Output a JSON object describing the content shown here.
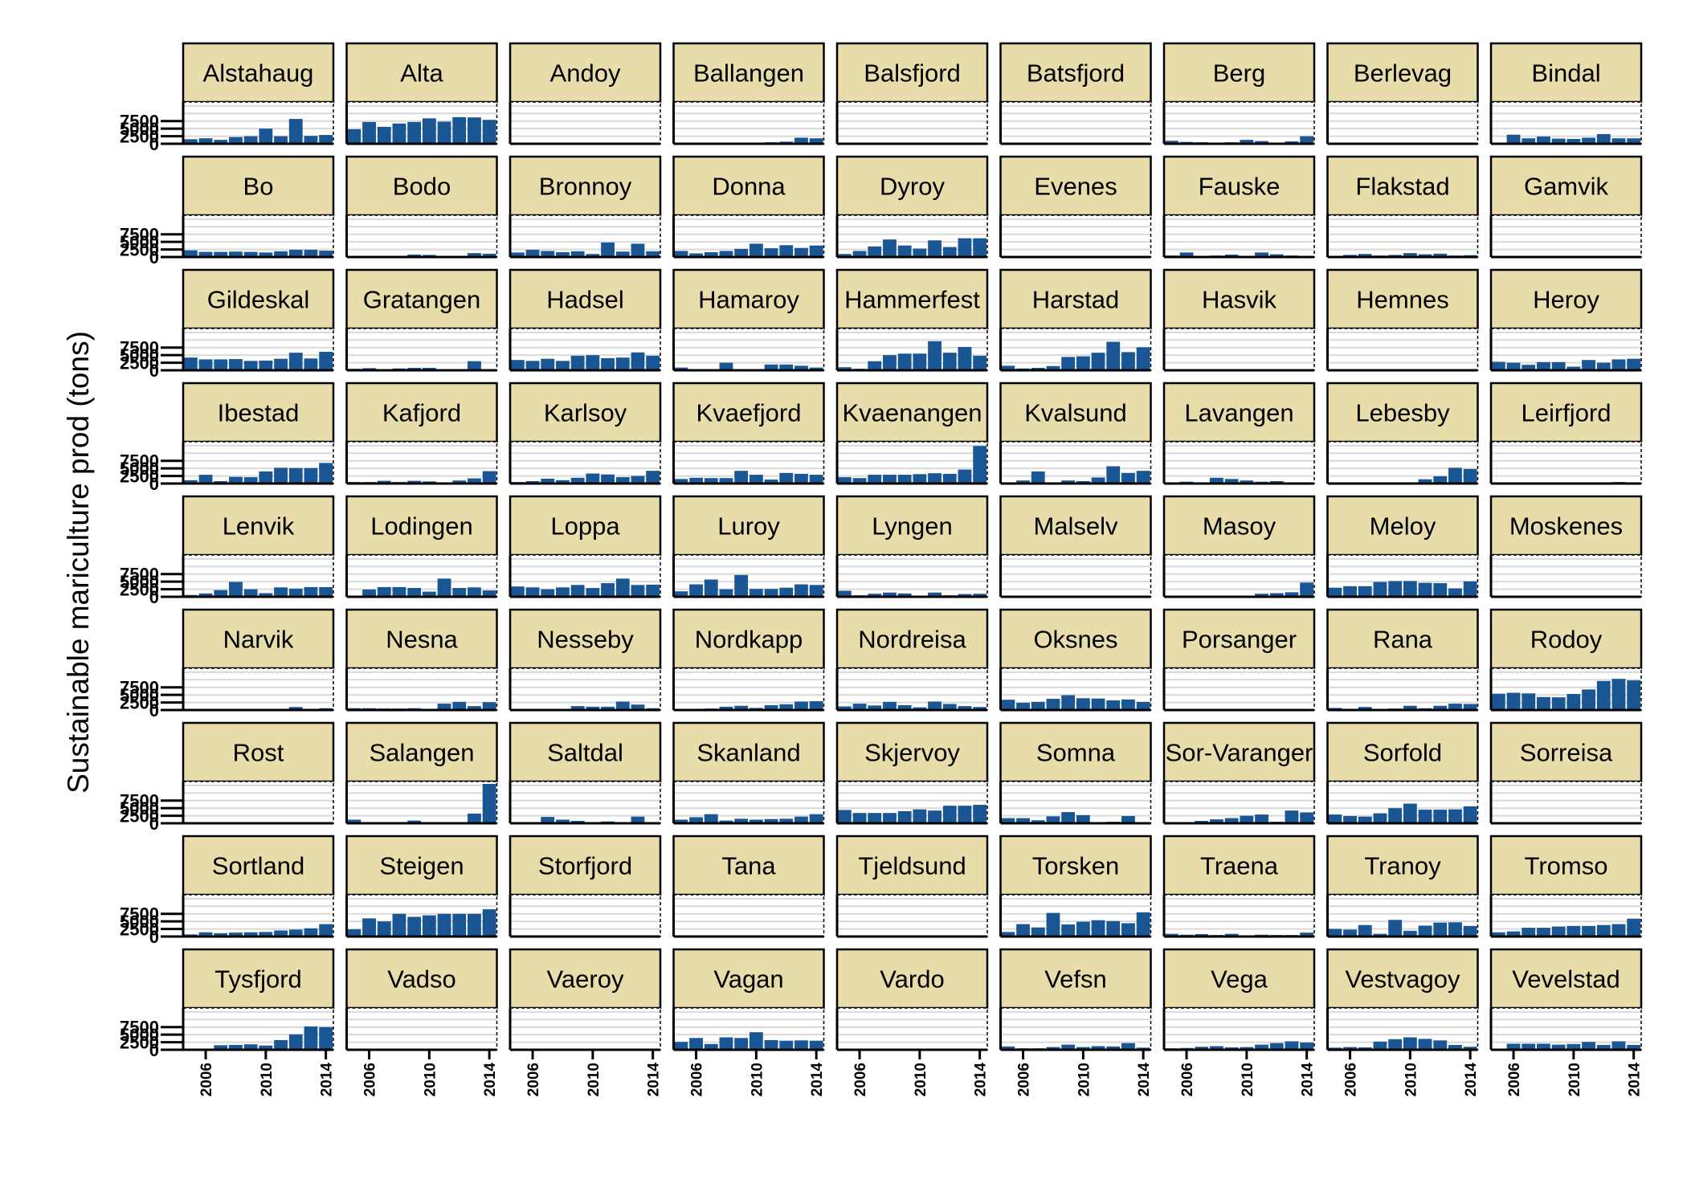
{
  "chart_data": {
    "type": "bar",
    "layout": "facet-grid",
    "title": "",
    "xlabel": "",
    "ylabel": "Sustainable mariculture prod (tons)",
    "x": [
      2005,
      2006,
      2007,
      2008,
      2009,
      2010,
      2011,
      2012,
      2013,
      2014
    ],
    "xticks": [
      2006,
      2010,
      2014
    ],
    "xtick_labels": [
      "2006",
      "2010",
      "2014"
    ],
    "ylim": [
      0,
      13000
    ],
    "yticks": [
      0,
      2500,
      5000,
      7500
    ],
    "ytick_labels": [
      "0",
      "2500",
      "5000",
      "7500"
    ],
    "grid": true,
    "colors": {
      "bar": "#1B5694",
      "strip_fill": "#E8DDAA",
      "grid": "#D9D9D9"
    },
    "facets": [
      {
        "name": "Alstahaug",
        "values": [
          1500,
          1800,
          1300,
          2200,
          2500,
          5000,
          2500,
          8200,
          2600,
          2900
        ]
      },
      {
        "name": "Alta",
        "values": [
          4800,
          7200,
          5600,
          6700,
          7200,
          8400,
          7300,
          8800,
          8700,
          7900
        ]
      },
      {
        "name": "Andoy",
        "values": [
          0,
          0,
          0,
          0,
          0,
          0,
          0,
          0,
          0,
          0
        ]
      },
      {
        "name": "Ballangen",
        "values": [
          200,
          300,
          250,
          300,
          280,
          350,
          500,
          700,
          2000,
          1800
        ]
      },
      {
        "name": "Balsfjord",
        "values": [
          0,
          0,
          0,
          0,
          0,
          0,
          0,
          0,
          0,
          0
        ]
      },
      {
        "name": "Batsfjord",
        "values": [
          0,
          0,
          0,
          0,
          0,
          0,
          0,
          0,
          0,
          0
        ]
      },
      {
        "name": "Berg",
        "values": [
          1000,
          600,
          500,
          0,
          500,
          1300,
          900,
          0,
          800,
          2500
        ]
      },
      {
        "name": "Berlevag",
        "values": [
          0,
          0,
          0,
          0,
          0,
          0,
          0,
          0,
          0,
          0
        ]
      },
      {
        "name": "Bindal",
        "values": [
          300,
          3000,
          1800,
          2400,
          1700,
          1600,
          2000,
          3200,
          1800,
          1800
        ]
      },
      {
        "name": "Bo",
        "values": [
          2200,
          1700,
          1700,
          1800,
          1700,
          1500,
          1900,
          2400,
          2400,
          2100
        ]
      },
      {
        "name": "Bodo",
        "values": [
          300,
          300,
          0,
          0,
          800,
          700,
          0,
          300,
          1300,
          1100
        ]
      },
      {
        "name": "Bronnoy",
        "values": [
          1500,
          2400,
          2000,
          1600,
          1900,
          1000,
          4800,
          1800,
          4400,
          1900
        ]
      },
      {
        "name": "Donna",
        "values": [
          2000,
          1200,
          1600,
          2000,
          2700,
          4400,
          2900,
          3900,
          3000,
          3800
        ]
      },
      {
        "name": "Dyroy",
        "values": [
          1000,
          2000,
          3500,
          5800,
          3800,
          2800,
          5500,
          3300,
          6200,
          6200
        ]
      },
      {
        "name": "Evenes",
        "values": [
          0,
          0,
          0,
          0,
          0,
          0,
          0,
          0,
          0,
          0
        ]
      },
      {
        "name": "Fauske",
        "values": [
          500,
          1500,
          0,
          500,
          800,
          300,
          1500,
          900,
          500,
          400
        ]
      },
      {
        "name": "Flakstad",
        "values": [
          400,
          700,
          1000,
          500,
          700,
          1300,
          900,
          1100,
          500,
          600
        ]
      },
      {
        "name": "Gamvik",
        "values": [
          0,
          0,
          0,
          0,
          0,
          0,
          0,
          0,
          0,
          0
        ]
      },
      {
        "name": "Gildeskal",
        "values": [
          4200,
          3600,
          3600,
          3700,
          3100,
          3200,
          3800,
          5800,
          3900,
          6100
        ]
      },
      {
        "name": "Gratangen",
        "values": [
          500,
          700,
          0,
          600,
          800,
          800,
          0,
          0,
          3000,
          400
        ]
      },
      {
        "name": "Hadsel",
        "values": [
          3400,
          3100,
          3800,
          3100,
          4800,
          5000,
          4000,
          4200,
          5900,
          4800
        ]
      },
      {
        "name": "Hamaroy",
        "values": [
          900,
          100,
          0,
          2500,
          100,
          0,
          1900,
          1900,
          1500,
          900
        ]
      },
      {
        "name": "Hammerfest",
        "values": [
          1000,
          500,
          3000,
          5000,
          5500,
          5500,
          9600,
          5800,
          7700,
          4800
        ]
      },
      {
        "name": "Harstad",
        "values": [
          1500,
          600,
          800,
          1400,
          4400,
          4600,
          5800,
          9400,
          6000,
          7600
        ]
      },
      {
        "name": "Hasvik",
        "values": [
          0,
          0,
          0,
          0,
          0,
          0,
          0,
          0,
          0,
          0
        ]
      },
      {
        "name": "Hemnes",
        "values": [
          0,
          0,
          0,
          0,
          0,
          0,
          0,
          0,
          0,
          0
        ]
      },
      {
        "name": "Heroy",
        "values": [
          2800,
          2500,
          1800,
          2700,
          2700,
          1200,
          3400,
          2500,
          3600,
          3800
        ]
      },
      {
        "name": "Ibestad",
        "values": [
          1100,
          2900,
          800,
          2200,
          2100,
          4000,
          5200,
          5100,
          5100,
          6800
        ]
      },
      {
        "name": "Kafjord",
        "values": [
          500,
          500,
          900,
          500,
          900,
          700,
          0,
          1000,
          1700,
          4100
        ]
      },
      {
        "name": "Karlsoy",
        "values": [
          500,
          800,
          1600,
          1100,
          1900,
          3300,
          3000,
          2100,
          2500,
          4200
        ]
      },
      {
        "name": "Kvaefjord",
        "values": [
          1500,
          1900,
          1800,
          1800,
          4200,
          2900,
          1300,
          3500,
          3200,
          2900
        ]
      },
      {
        "name": "Kvaenangen",
        "values": [
          2100,
          1800,
          2900,
          2900,
          2900,
          3100,
          3400,
          3200,
          4600,
          12400
        ]
      },
      {
        "name": "Kvalsund",
        "values": [
          300,
          1000,
          4000,
          400,
          1000,
          800,
          2000,
          5700,
          3500,
          4200
        ]
      },
      {
        "name": "Lavangen",
        "values": [
          100,
          600,
          0,
          1900,
          1500,
          1000,
          600,
          800,
          0,
          100
        ]
      },
      {
        "name": "Lebesby",
        "values": [
          0,
          0,
          0,
          0,
          0,
          300,
          1400,
          2400,
          5200,
          4800
        ]
      },
      {
        "name": "Leirfjord",
        "values": [
          0,
          0,
          0,
          0,
          0,
          0,
          0,
          0,
          500,
          0
        ]
      },
      {
        "name": "Lenvik",
        "values": [
          600,
          1100,
          2200,
          4900,
          2500,
          1200,
          3100,
          2700,
          3200,
          3200
        ]
      },
      {
        "name": "Lodingen",
        "values": [
          300,
          2400,
          3200,
          3200,
          2900,
          1700,
          6000,
          2900,
          3100,
          2100
        ]
      },
      {
        "name": "Loppa",
        "values": [
          3400,
          3100,
          2500,
          3100,
          3900,
          2900,
          4500,
          6000,
          3900,
          4000
        ]
      },
      {
        "name": "Luroy",
        "values": [
          1800,
          4100,
          5700,
          2500,
          7200,
          2600,
          2600,
          3000,
          4100,
          3900
        ]
      },
      {
        "name": "Lyngen",
        "values": [
          2000,
          500,
          1000,
          1400,
          1100,
          400,
          1400,
          500,
          900,
          1000
        ]
      },
      {
        "name": "Malselv",
        "values": [
          0,
          0,
          0,
          0,
          0,
          0,
          0,
          0,
          0,
          0
        ]
      },
      {
        "name": "Masoy",
        "values": [
          0,
          0,
          0,
          0,
          0,
          0,
          1000,
          1200,
          1500,
          4700
        ]
      },
      {
        "name": "Meloy",
        "values": [
          3000,
          3500,
          3500,
          4900,
          5200,
          5200,
          4600,
          4500,
          2800,
          5100
        ]
      },
      {
        "name": "Moskenes",
        "values": [
          0,
          0,
          0,
          0,
          0,
          0,
          0,
          0,
          0,
          0
        ]
      },
      {
        "name": "Narvik",
        "values": [
          0,
          0,
          0,
          0,
          0,
          0,
          300,
          1000,
          300,
          600
        ]
      },
      {
        "name": "Nesna",
        "values": [
          600,
          600,
          500,
          500,
          600,
          300,
          2100,
          2700,
          1300,
          2600
        ]
      },
      {
        "name": "Nesseby",
        "values": [
          300,
          0,
          0,
          300,
          1300,
          1100,
          1100,
          2800,
          1800,
          600
        ]
      },
      {
        "name": "Nordkapp",
        "values": [
          0,
          100,
          500,
          1100,
          1400,
          700,
          1600,
          1900,
          2800,
          2900
        ]
      },
      {
        "name": "Nordreisa",
        "values": [
          1200,
          2100,
          1500,
          2700,
          1600,
          900,
          2800,
          2000,
          1300,
          1000
        ]
      },
      {
        "name": "Oksnes",
        "values": [
          3400,
          2400,
          2700,
          3700,
          4900,
          3900,
          3800,
          3200,
          3500,
          2700
        ]
      },
      {
        "name": "Porsanger",
        "values": [
          0,
          0,
          0,
          0,
          0,
          0,
          0,
          0,
          0,
          0
        ]
      },
      {
        "name": "Rana",
        "values": [
          700,
          400,
          1000,
          0,
          500,
          1400,
          600,
          1400,
          2100,
          2000
        ]
      },
      {
        "name": "Rodoy",
        "values": [
          5400,
          5700,
          5500,
          4300,
          4200,
          5300,
          6800,
          9600,
          10300,
          9800
        ]
      },
      {
        "name": "Rost",
        "values": [
          0,
          0,
          0,
          0,
          0,
          0,
          0,
          0,
          0,
          0
        ]
      },
      {
        "name": "Salangen",
        "values": [
          1200,
          0,
          0,
          0,
          900,
          0,
          0,
          0,
          3200,
          13000
        ]
      },
      {
        "name": "Saltdal",
        "values": [
          300,
          0,
          2100,
          1200,
          800,
          0,
          600,
          0,
          2200,
          200
        ]
      },
      {
        "name": "Skanland",
        "values": [
          1200,
          2000,
          3000,
          900,
          1500,
          1200,
          1400,
          1500,
          2200,
          3000
        ]
      },
      {
        "name": "Skjervoy",
        "values": [
          4400,
          3400,
          3400,
          3400,
          4000,
          4600,
          4200,
          5800,
          5800,
          6100
        ]
      },
      {
        "name": "Somna",
        "values": [
          1700,
          1700,
          1000,
          2300,
          3700,
          2700,
          0,
          500,
          2400,
          0
        ]
      },
      {
        "name": "Sor-Varanger",
        "values": [
          200,
          300,
          800,
          1300,
          1700,
          2500,
          2900,
          500,
          4200,
          3600
        ]
      },
      {
        "name": "Sorfold",
        "values": [
          2900,
          2400,
          2200,
          3300,
          5000,
          6500,
          4500,
          4500,
          4600,
          5600
        ]
      },
      {
        "name": "Sorreisa",
        "values": [
          0,
          0,
          0,
          0,
          0,
          0,
          400,
          300,
          400,
          0
        ]
      },
      {
        "name": "Sortland",
        "values": [
          700,
          1400,
          1100,
          1300,
          1400,
          1500,
          2000,
          2300,
          2700,
          4100
        ]
      },
      {
        "name": "Steigen",
        "values": [
          2400,
          6000,
          5000,
          7500,
          6500,
          7000,
          7500,
          7500,
          7500,
          9000
        ]
      },
      {
        "name": "Storfjord",
        "values": [
          0,
          0,
          0,
          0,
          0,
          0,
          0,
          0,
          0,
          0
        ]
      },
      {
        "name": "Tana",
        "values": [
          0,
          0,
          0,
          0,
          0,
          0,
          0,
          0,
          0,
          0
        ]
      },
      {
        "name": "Tjeldsund",
        "values": [
          0,
          0,
          0,
          0,
          0,
          0,
          0,
          0,
          0,
          0
        ]
      },
      {
        "name": "Torsken",
        "values": [
          1500,
          4100,
          3000,
          7800,
          4000,
          4900,
          5400,
          5100,
          4400,
          8000
        ]
      },
      {
        "name": "Traena",
        "values": [
          900,
          600,
          800,
          500,
          900,
          200,
          600,
          500,
          500,
          1300
        ]
      },
      {
        "name": "Tranoy",
        "values": [
          2500,
          2300,
          3800,
          900,
          5500,
          1900,
          3600,
          4600,
          4700,
          3500
        ]
      },
      {
        "name": "Tromso",
        "values": [
          1400,
          1700,
          2900,
          2900,
          3300,
          3500,
          3500,
          3800,
          4100,
          5900
        ]
      },
      {
        "name": "Tysfjord",
        "values": [
          200,
          300,
          1500,
          1600,
          1800,
          1400,
          3200,
          5100,
          7700,
          7500
        ]
      },
      {
        "name": "Vadso",
        "values": [
          0,
          0,
          0,
          0,
          0,
          0,
          0,
          0,
          0,
          0
        ]
      },
      {
        "name": "Vaeroy",
        "values": [
          0,
          0,
          0,
          0,
          0,
          0,
          0,
          0,
          0,
          0
        ]
      },
      {
        "name": "Vagan",
        "values": [
          2600,
          3900,
          1900,
          4100,
          3900,
          5800,
          3200,
          3000,
          3100,
          3000
        ]
      },
      {
        "name": "Vardo",
        "values": [
          0,
          0,
          0,
          0,
          0,
          0,
          0,
          0,
          0,
          0
        ]
      },
      {
        "name": "Vefsn",
        "values": [
          1100,
          500,
          500,
          900,
          1700,
          900,
          1200,
          1100,
          2200,
          700
        ]
      },
      {
        "name": "Vega",
        "values": [
          500,
          600,
          1000,
          1200,
          800,
          900,
          1700,
          2200,
          2800,
          2400
        ]
      },
      {
        "name": "Vestvagoy",
        "values": [
          700,
          900,
          800,
          2700,
          3500,
          4100,
          3600,
          3100,
          1600,
          1000
        ]
      },
      {
        "name": "Vevelstad",
        "values": [
          300,
          2000,
          2000,
          2000,
          1700,
          1900,
          2600,
          1600,
          2800,
          1600
        ]
      }
    ]
  }
}
